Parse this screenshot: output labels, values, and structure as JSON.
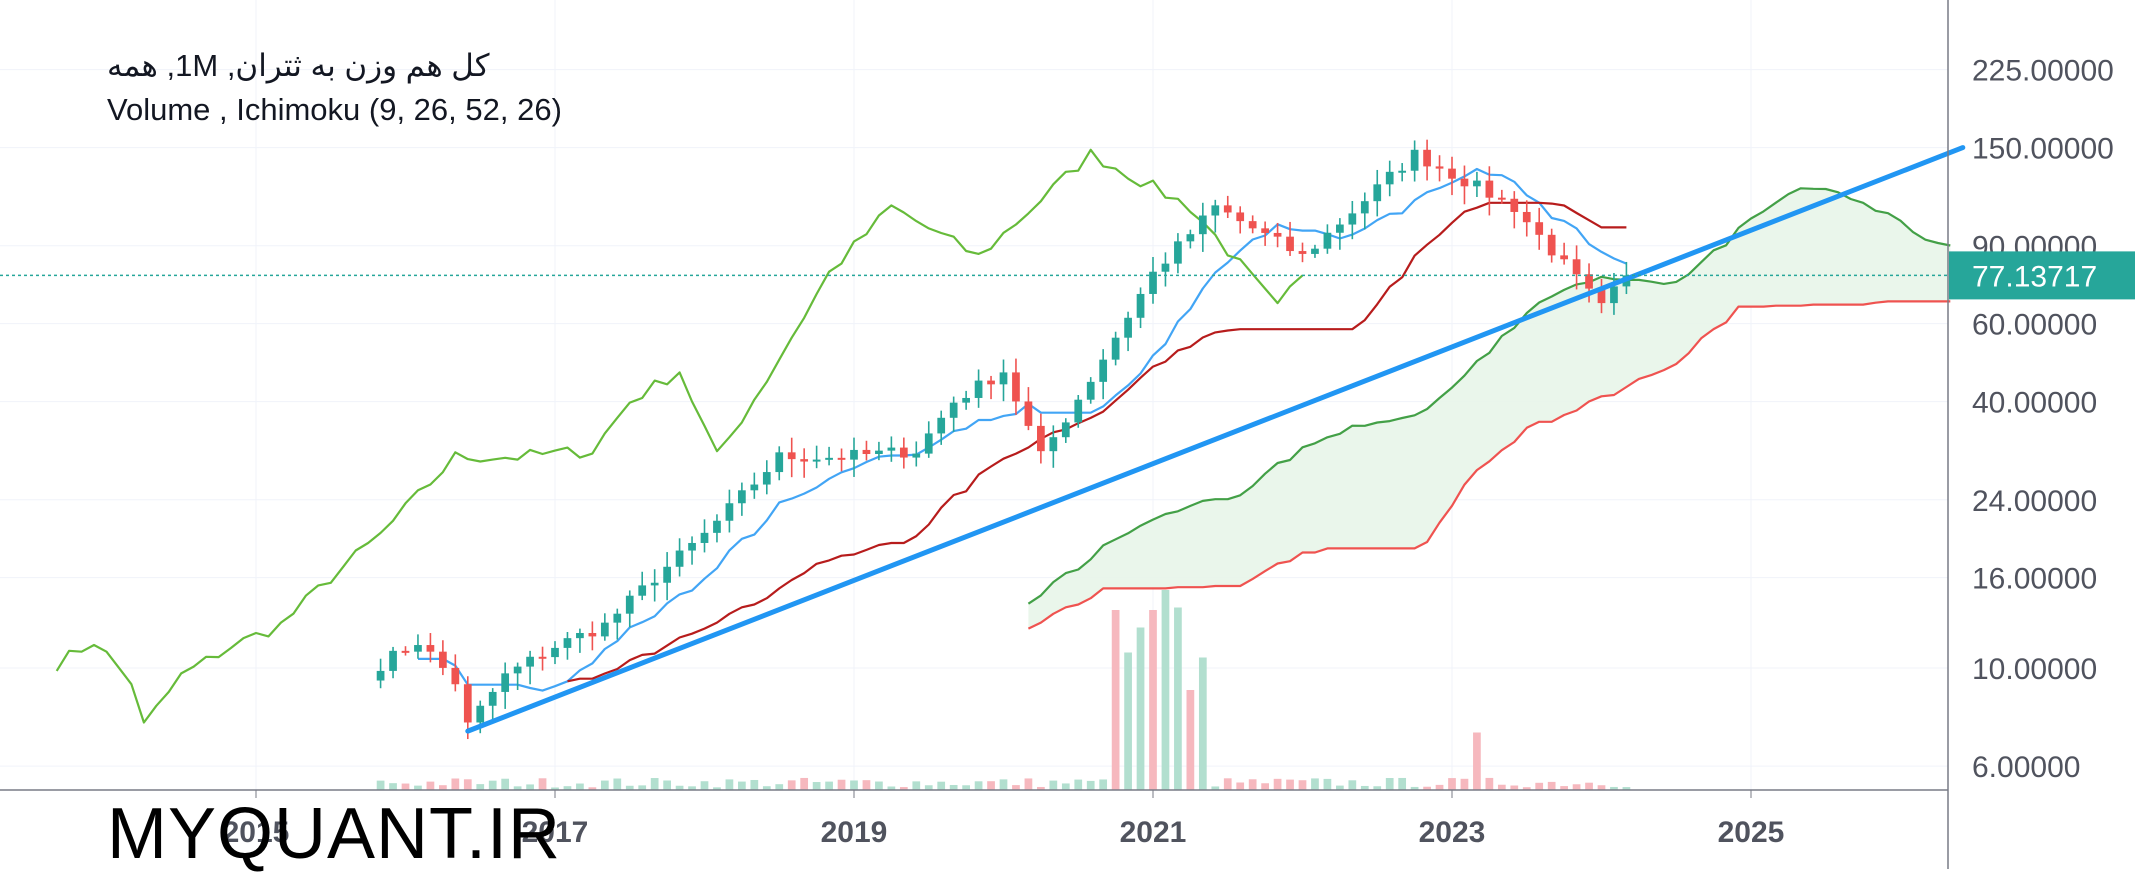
{
  "legend": {
    "line1": "کل هم وزن به ثتران, 1M, همه",
    "line2": "Volume , Ichimoku (9, 26, 52, 26)"
  },
  "watermark": "MYQUANT.IR",
  "last_price_label": "77.13717",
  "colors": {
    "up": "#26a69a",
    "down": "#ef5350",
    "volume_up": "#b2dfcf",
    "volume_down": "#f6b8be",
    "tenkan": "#42a5f5",
    "kijun": "#b71c1c",
    "chikou": "#66bb3a",
    "span_a": "#43a047",
    "span_b": "#ef5350",
    "cloud": "#e8f5e9",
    "trendline": "#2196f3",
    "price_line": "#26a69a",
    "axis_text": "#50535e",
    "grid": "#f0f3fa"
  },
  "chart_data": {
    "type": "candlestick",
    "y_scale": "log",
    "y_ticks": [
      "225.00000",
      "150.00000",
      "90.00000",
      "60.00000",
      "40.00000",
      "24.00000",
      "16.00000",
      "10.00000",
      "6.00000"
    ],
    "x_ticks": [
      "2015",
      "2017",
      "2019",
      "2021",
      "2023",
      "2025"
    ],
    "last_price": 77.13717,
    "series": [
      {
        "name": "Volume"
      },
      {
        "name": "Ichimoku (9, 26, 52, 26)"
      }
    ],
    "price_anchors": [
      {
        "date": "2015-11",
        "value": 10.2
      },
      {
        "date": "2016-02",
        "value": 11.5
      },
      {
        "date": "2016-05",
        "value": 9.3
      },
      {
        "date": "2016-06",
        "value": 7.4
      },
      {
        "date": "2016-09",
        "value": 9.6
      },
      {
        "date": "2017-01",
        "value": 11.2
      },
      {
        "date": "2017-05",
        "value": 12.5
      },
      {
        "date": "2017-09",
        "value": 16.0
      },
      {
        "date": "2018-01",
        "value": 20.0
      },
      {
        "date": "2018-04",
        "value": 24.5
      },
      {
        "date": "2018-07",
        "value": 30.0
      },
      {
        "date": "2018-12",
        "value": 30.0
      },
      {
        "date": "2019-06",
        "value": 31.0
      },
      {
        "date": "2019-09",
        "value": 40.0
      },
      {
        "date": "2020-01",
        "value": 47.0
      },
      {
        "date": "2020-04",
        "value": 30.0
      },
      {
        "date": "2020-08",
        "value": 45.0
      },
      {
        "date": "2021-01",
        "value": 78.0
      },
      {
        "date": "2021-06",
        "value": 110.0
      },
      {
        "date": "2022-01",
        "value": 85.0
      },
      {
        "date": "2022-10",
        "value": 145.0
      },
      {
        "date": "2023-06",
        "value": 110.0
      },
      {
        "date": "2024-01",
        "value": 65.0
      },
      {
        "date": "2024-03",
        "value": 77.1
      }
    ],
    "trendline": [
      {
        "date": "2016-06",
        "value": 7.2
      },
      {
        "date": "2026-06",
        "value": 150.0
      }
    ],
    "volume_highlights": [
      {
        "date": "2020-10",
        "value": 0.72,
        "direction": "down"
      },
      {
        "date": "2020-11",
        "value": 0.55,
        "direction": "up"
      },
      {
        "date": "2020-12",
        "value": 0.65,
        "direction": "up"
      },
      {
        "date": "2021-01",
        "value": 0.72,
        "direction": "down"
      },
      {
        "date": "2021-02",
        "value": 0.8,
        "direction": "up"
      },
      {
        "date": "2021-03",
        "value": 0.73,
        "direction": "up"
      },
      {
        "date": "2021-04",
        "value": 0.4,
        "direction": "down"
      },
      {
        "date": "2021-05",
        "value": 0.53,
        "direction": "up"
      },
      {
        "date": "2023-03",
        "value": 0.23,
        "direction": "down"
      }
    ]
  }
}
